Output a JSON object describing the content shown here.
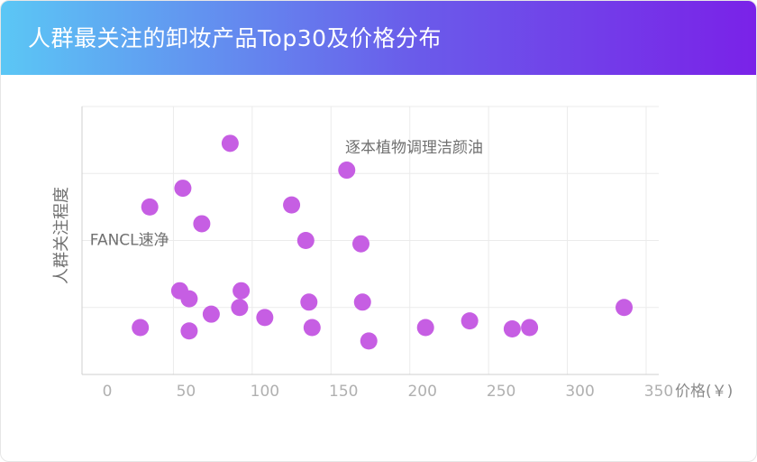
{
  "header": {
    "title": "人群最关注的卸妆产品Top30及价格分布"
  },
  "colors": {
    "header_start": "#5bc7f5",
    "header_end": "#7a22e8",
    "point": "#c65ee3",
    "grid": "#ebebeb",
    "axis": "#cfcfcf"
  },
  "chart_data": {
    "type": "scatter",
    "title": "人群最关注的卸妆产品Top30及价格分布",
    "xlabel": "价格(￥)",
    "ylabel": "人群关注程度",
    "xlim": [
      -8,
      358
    ],
    "ylim": [
      0,
      4
    ],
    "grid": true,
    "x_ticks": [
      0,
      50,
      100,
      150,
      200,
      250,
      300,
      350
    ],
    "x_tick_labels": [
      "0",
      "50",
      "100",
      "150",
      "200",
      "250",
      "300",
      "350"
    ],
    "y_grid": [
      1,
      2,
      3,
      4
    ],
    "points": [
      {
        "x": 86,
        "y": 3.45
      },
      {
        "x": 160,
        "y": 3.05
      },
      {
        "x": 56,
        "y": 2.78
      },
      {
        "x": 35,
        "y": 2.5
      },
      {
        "x": 125,
        "y": 2.53
      },
      {
        "x": 68,
        "y": 2.25
      },
      {
        "x": 134,
        "y": 2.0
      },
      {
        "x": 169,
        "y": 1.95
      },
      {
        "x": 54,
        "y": 1.25
      },
      {
        "x": 93,
        "y": 1.25
      },
      {
        "x": 60,
        "y": 1.13
      },
      {
        "x": 136,
        "y": 1.08
      },
      {
        "x": 170,
        "y": 1.08
      },
      {
        "x": 92,
        "y": 1.0
      },
      {
        "x": 74,
        "y": 0.9
      },
      {
        "x": 108,
        "y": 0.85
      },
      {
        "x": 336,
        "y": 1.0
      },
      {
        "x": 29,
        "y": 0.7
      },
      {
        "x": 60,
        "y": 0.65
      },
      {
        "x": 138,
        "y": 0.7
      },
      {
        "x": 174,
        "y": 0.5
      },
      {
        "x": 210,
        "y": 0.7
      },
      {
        "x": 238,
        "y": 0.8
      },
      {
        "x": 265,
        "y": 0.68
      },
      {
        "x": 276,
        "y": 0.7
      }
    ],
    "annotations": [
      {
        "text": "逐本植物调理洁颜油",
        "x": 159,
        "y": 3.38
      },
      {
        "text": "FANCL速净",
        "x": -3,
        "y": 2.0
      }
    ]
  }
}
